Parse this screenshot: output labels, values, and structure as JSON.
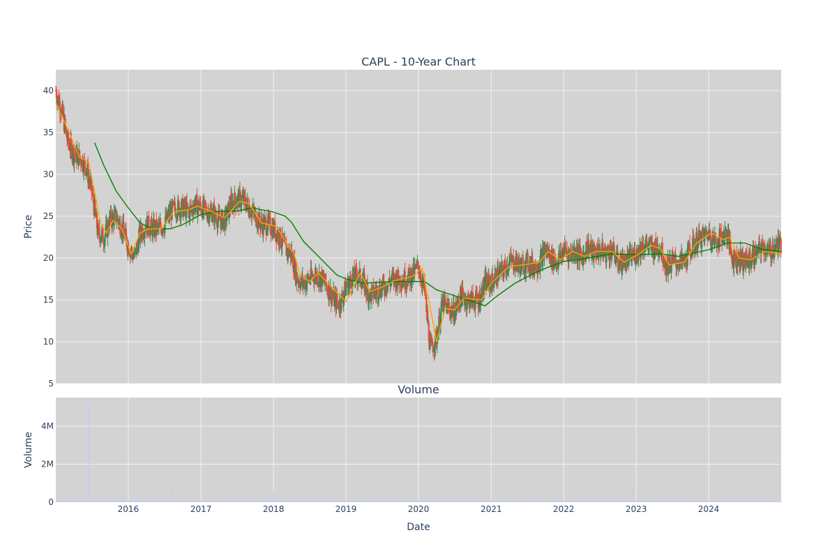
{
  "chart_data": [
    {
      "type": "candlestick",
      "title": "CAPL - 10-Year Chart",
      "ylabel": "Price",
      "xlim": [
        "2015-01-01",
        "2024-12-31"
      ],
      "ylim": [
        5,
        42.5
      ],
      "yticks": [
        5,
        10,
        15,
        20,
        25,
        30,
        35,
        40
      ],
      "grid": true,
      "plot_bgcolor": "#d3d3d3",
      "colors": {
        "up": "#2e8b57",
        "down": "#e74c3c",
        "ma_short": "#ffa500",
        "ma_long": "#008000"
      },
      "series": [
        {
          "type": "candlestick"
        },
        {
          "type": "line"
        },
        {
          "type": "line"
        }
      ],
      "price_path": [
        [
          "2015-01-01",
          40.0
        ],
        [
          "2015-02-01",
          37.5
        ],
        [
          "2015-03-01",
          34.0
        ],
        [
          "2015-04-01",
          32.5
        ],
        [
          "2015-05-01",
          32.0
        ],
        [
          "2015-06-01",
          31.0
        ],
        [
          "2015-07-01",
          28.0
        ],
        [
          "2015-08-01",
          23.0
        ],
        [
          "2015-09-01",
          22.5
        ],
        [
          "2015-10-01",
          24.5
        ],
        [
          "2015-11-01",
          25.0
        ],
        [
          "2015-12-01",
          23.5
        ],
        [
          "2016-01-01",
          21.5
        ],
        [
          "2016-02-01",
          20.0
        ],
        [
          "2016-03-01",
          23.0
        ],
        [
          "2016-04-01",
          24.0
        ],
        [
          "2016-05-01",
          23.5
        ],
        [
          "2016-06-01",
          23.5
        ],
        [
          "2016-07-01",
          24.0
        ],
        [
          "2016-08-01",
          25.5
        ],
        [
          "2016-09-01",
          26.0
        ],
        [
          "2016-10-01",
          26.0
        ],
        [
          "2016-11-01",
          25.5
        ],
        [
          "2016-12-01",
          26.5
        ],
        [
          "2017-01-01",
          26.0
        ],
        [
          "2017-02-01",
          25.5
        ],
        [
          "2017-03-01",
          25.5
        ],
        [
          "2017-04-01",
          24.5
        ],
        [
          "2017-05-01",
          24.5
        ],
        [
          "2017-06-01",
          26.5
        ],
        [
          "2017-07-01",
          27.0
        ],
        [
          "2017-08-01",
          27.0
        ],
        [
          "2017-09-01",
          26.0
        ],
        [
          "2017-10-01",
          25.0
        ],
        [
          "2017-11-01",
          24.0
        ],
        [
          "2017-12-01",
          24.0
        ],
        [
          "2018-01-01",
          23.5
        ],
        [
          "2018-02-01",
          22.5
        ],
        [
          "2018-03-01",
          21.0
        ],
        [
          "2018-04-01",
          20.5
        ],
        [
          "2018-05-01",
          17.5
        ],
        [
          "2018-06-01",
          17.0
        ],
        [
          "2018-07-01",
          17.5
        ],
        [
          "2018-08-01",
          18.0
        ],
        [
          "2018-09-01",
          17.5
        ],
        [
          "2018-10-01",
          16.5
        ],
        [
          "2018-11-01",
          15.0
        ],
        [
          "2018-12-01",
          14.5
        ],
        [
          "2019-01-01",
          16.5
        ],
        [
          "2019-02-01",
          17.5
        ],
        [
          "2019-03-01",
          18.0
        ],
        [
          "2019-04-01",
          17.0
        ],
        [
          "2019-05-01",
          15.5
        ],
        [
          "2019-06-01",
          16.0
        ],
        [
          "2019-07-01",
          16.5
        ],
        [
          "2019-08-01",
          17.0
        ],
        [
          "2019-09-01",
          17.5
        ],
        [
          "2019-10-01",
          17.5
        ],
        [
          "2019-11-01",
          17.5
        ],
        [
          "2019-12-01",
          18.0
        ],
        [
          "2020-01-01",
          19.0
        ],
        [
          "2020-02-01",
          16.0
        ],
        [
          "2020-03-01",
          9.0
        ],
        [
          "2020-04-01",
          10.5
        ],
        [
          "2020-05-01",
          14.5
        ],
        [
          "2020-06-01",
          14.0
        ],
        [
          "2020-07-01",
          13.5
        ],
        [
          "2020-08-01",
          15.5
        ],
        [
          "2020-09-01",
          15.0
        ],
        [
          "2020-10-01",
          15.0
        ],
        [
          "2020-11-01",
          15.0
        ],
        [
          "2020-12-01",
          17.0
        ],
        [
          "2021-01-01",
          17.0
        ],
        [
          "2021-02-01",
          18.0
        ],
        [
          "2021-03-01",
          18.5
        ],
        [
          "2021-04-01",
          19.5
        ],
        [
          "2021-05-01",
          19.5
        ],
        [
          "2021-06-01",
          19.0
        ],
        [
          "2021-07-01",
          19.5
        ],
        [
          "2021-08-01",
          19.0
        ],
        [
          "2021-09-01",
          19.5
        ],
        [
          "2021-10-01",
          21.0
        ],
        [
          "2021-11-01",
          20.0
        ],
        [
          "2021-12-01",
          19.5
        ],
        [
          "2022-01-01",
          21.0
        ],
        [
          "2022-02-01",
          20.5
        ],
        [
          "2022-03-01",
          21.0
        ],
        [
          "2022-04-01",
          20.0
        ],
        [
          "2022-05-01",
          21.5
        ],
        [
          "2022-06-01",
          20.5
        ],
        [
          "2022-07-01",
          21.0
        ],
        [
          "2022-08-01",
          20.5
        ],
        [
          "2022-09-01",
          21.0
        ],
        [
          "2022-10-01",
          19.5
        ],
        [
          "2022-11-01",
          19.5
        ],
        [
          "2022-12-01",
          20.0
        ],
        [
          "2023-01-01",
          20.5
        ],
        [
          "2023-02-01",
          21.5
        ],
        [
          "2023-03-01",
          21.5
        ],
        [
          "2023-04-01",
          21.0
        ],
        [
          "2023-05-01",
          21.5
        ],
        [
          "2023-06-01",
          19.0
        ],
        [
          "2023-07-01",
          19.5
        ],
        [
          "2023-08-01",
          19.5
        ],
        [
          "2023-09-01",
          19.5
        ],
        [
          "2023-10-01",
          21.0
        ],
        [
          "2023-11-01",
          22.0
        ],
        [
          "2023-12-01",
          22.5
        ],
        [
          "2024-01-01",
          23.0
        ],
        [
          "2024-02-01",
          22.0
        ],
        [
          "2024-03-01",
          22.5
        ],
        [
          "2024-04-01",
          23.0
        ],
        [
          "2024-05-01",
          20.0
        ],
        [
          "2024-06-01",
          20.0
        ],
        [
          "2024-07-01",
          19.5
        ],
        [
          "2024-08-01",
          20.0
        ],
        [
          "2024-09-01",
          20.5
        ],
        [
          "2024-10-01",
          21.5
        ],
        [
          "2024-11-01",
          20.5
        ],
        [
          "2024-12-01",
          21.5
        ]
      ],
      "ma_short_path": [
        [
          "2015-01-01",
          38.5
        ],
        [
          "2015-03-01",
          35.5
        ],
        [
          "2015-05-01",
          32.0
        ],
        [
          "2015-06-15",
          31.5
        ],
        [
          "2015-07-15",
          28.0
        ],
        [
          "2015-08-15",
          24.0
        ],
        [
          "2015-09-15",
          23.0
        ],
        [
          "2015-10-15",
          24.5
        ],
        [
          "2015-12-01",
          23.5
        ],
        [
          "2016-01-15",
          20.5
        ],
        [
          "2016-03-01",
          23.0
        ],
        [
          "2016-04-15",
          23.5
        ],
        [
          "2016-06-15",
          23.5
        ],
        [
          "2016-08-15",
          25.5
        ],
        [
          "2016-11-01",
          25.8
        ],
        [
          "2016-12-15",
          26.2
        ],
        [
          "2017-03-01",
          25.5
        ],
        [
          "2017-05-01",
          24.8
        ],
        [
          "2017-07-15",
          26.8
        ],
        [
          "2017-09-01",
          26.5
        ],
        [
          "2017-11-01",
          24.2
        ],
        [
          "2018-01-15",
          23.8
        ],
        [
          "2018-03-15",
          21.5
        ],
        [
          "2018-04-15",
          20.5
        ],
        [
          "2018-05-15",
          18.0
        ],
        [
          "2018-07-01",
          17.2
        ],
        [
          "2018-08-15",
          18.2
        ],
        [
          "2018-10-01",
          17.0
        ],
        [
          "2019-01-01",
          14.8
        ],
        [
          "2019-02-15",
          17.0
        ],
        [
          "2019-03-15",
          18.2
        ],
        [
          "2019-05-01",
          16.0
        ],
        [
          "2019-07-01",
          16.5
        ],
        [
          "2019-09-01",
          17.3
        ],
        [
          "2019-12-01",
          17.8
        ],
        [
          "2020-01-20",
          18.8
        ],
        [
          "2020-03-01",
          14.0
        ],
        [
          "2020-04-01",
          10.0
        ],
        [
          "2020-05-15",
          14.0
        ],
        [
          "2020-07-01",
          13.8
        ],
        [
          "2020-08-15",
          15.2
        ],
        [
          "2020-11-15",
          15.0
        ],
        [
          "2021-01-01",
          17.0
        ],
        [
          "2021-04-01",
          19.0
        ],
        [
          "2021-06-15",
          19.2
        ],
        [
          "2021-09-01",
          19.5
        ],
        [
          "2021-10-15",
          20.8
        ],
        [
          "2021-12-15",
          19.8
        ],
        [
          "2022-02-15",
          20.8
        ],
        [
          "2022-04-15",
          20.2
        ],
        [
          "2022-06-15",
          20.8
        ],
        [
          "2022-09-01",
          20.8
        ],
        [
          "2022-11-01",
          19.5
        ],
        [
          "2023-01-15",
          20.5
        ],
        [
          "2023-03-15",
          21.5
        ],
        [
          "2023-05-01",
          21.2
        ],
        [
          "2023-06-15",
          19.2
        ],
        [
          "2023-09-01",
          19.5
        ],
        [
          "2023-11-01",
          21.8
        ],
        [
          "2024-01-15",
          23.0
        ],
        [
          "2024-03-15",
          22.2
        ],
        [
          "2024-04-15",
          22.5
        ],
        [
          "2024-06-01",
          20.0
        ],
        [
          "2024-08-01",
          19.8
        ],
        [
          "2024-10-15",
          20.8
        ],
        [
          "2024-12-31",
          20.5
        ]
      ],
      "ma_long_path": [
        [
          "2015-07-15",
          33.8
        ],
        [
          "2015-09-01",
          31.0
        ],
        [
          "2015-11-01",
          28.0
        ],
        [
          "2016-01-01",
          26.0
        ],
        [
          "2016-03-01",
          24.2
        ],
        [
          "2016-05-01",
          23.5
        ],
        [
          "2016-08-01",
          23.5
        ],
        [
          "2016-10-01",
          24.0
        ],
        [
          "2017-01-01",
          25.2
        ],
        [
          "2017-04-01",
          25.6
        ],
        [
          "2017-07-01",
          25.6
        ],
        [
          "2017-09-15",
          26.0
        ],
        [
          "2018-01-01",
          25.5
        ],
        [
          "2018-03-01",
          25.0
        ],
        [
          "2018-04-01",
          24.3
        ],
        [
          "2018-06-01",
          22.0
        ],
        [
          "2018-09-01",
          19.8
        ],
        [
          "2018-11-15",
          18.0
        ],
        [
          "2019-01-01",
          17.5
        ],
        [
          "2019-04-01",
          17.0
        ],
        [
          "2019-09-01",
          17.2
        ],
        [
          "2020-02-01",
          17.2
        ],
        [
          "2020-04-01",
          16.2
        ],
        [
          "2020-07-01",
          15.5
        ],
        [
          "2020-10-01",
          14.8
        ],
        [
          "2020-12-01",
          14.3
        ],
        [
          "2021-02-01",
          15.5
        ],
        [
          "2021-05-01",
          17.0
        ],
        [
          "2021-09-01",
          18.5
        ],
        [
          "2022-01-01",
          19.6
        ],
        [
          "2022-05-01",
          20.0
        ],
        [
          "2022-09-01",
          20.5
        ],
        [
          "2023-01-01",
          20.4
        ],
        [
          "2023-05-01",
          20.5
        ],
        [
          "2023-08-01",
          20.2
        ],
        [
          "2024-01-01",
          21.0
        ],
        [
          "2024-04-01",
          21.8
        ],
        [
          "2024-07-01",
          21.8
        ],
        [
          "2024-10-01",
          21.0
        ],
        [
          "2024-12-31",
          20.8
        ]
      ]
    },
    {
      "type": "bar",
      "title": "Volume",
      "xlabel": "Date",
      "ylabel": "Volume",
      "xlim": [
        "2015-01-01",
        "2024-12-31"
      ],
      "ylim": [
        0,
        5500000
      ],
      "yticks": [
        0,
        2000000,
        4000000
      ],
      "ytick_labels": [
        "0",
        "2M",
        "4M"
      ],
      "xticks": [
        "2016-01-01",
        "2017-01-01",
        "2018-01-01",
        "2019-01-01",
        "2020-01-01",
        "2021-01-01",
        "2022-01-01",
        "2023-01-01",
        "2024-01-01"
      ],
      "xtick_labels": [
        "2016",
        "2017",
        "2018",
        "2019",
        "2020",
        "2021",
        "2022",
        "2023",
        "2024"
      ],
      "grid": true,
      "bar_color": "#c8cef0",
      "baseline": 60000,
      "spikes": [
        [
          "2015-03-01",
          180000
        ],
        [
          "2015-06-15",
          5300000
        ],
        [
          "2015-07-10",
          300000
        ],
        [
          "2015-08-20",
          400000
        ],
        [
          "2016-02-10",
          600000
        ],
        [
          "2016-05-01",
          250000
        ],
        [
          "2016-08-10",
          780000
        ],
        [
          "2017-07-01",
          250000
        ],
        [
          "2018-01-01",
          600000
        ],
        [
          "2018-06-01",
          200000
        ],
        [
          "2019-06-01",
          450000
        ],
        [
          "2019-07-01",
          350000
        ],
        [
          "2020-03-15",
          250000
        ],
        [
          "2020-04-05",
          200000
        ],
        [
          "2022-12-15",
          700000
        ],
        [
          "2023-06-01",
          100000
        ]
      ]
    }
  ]
}
